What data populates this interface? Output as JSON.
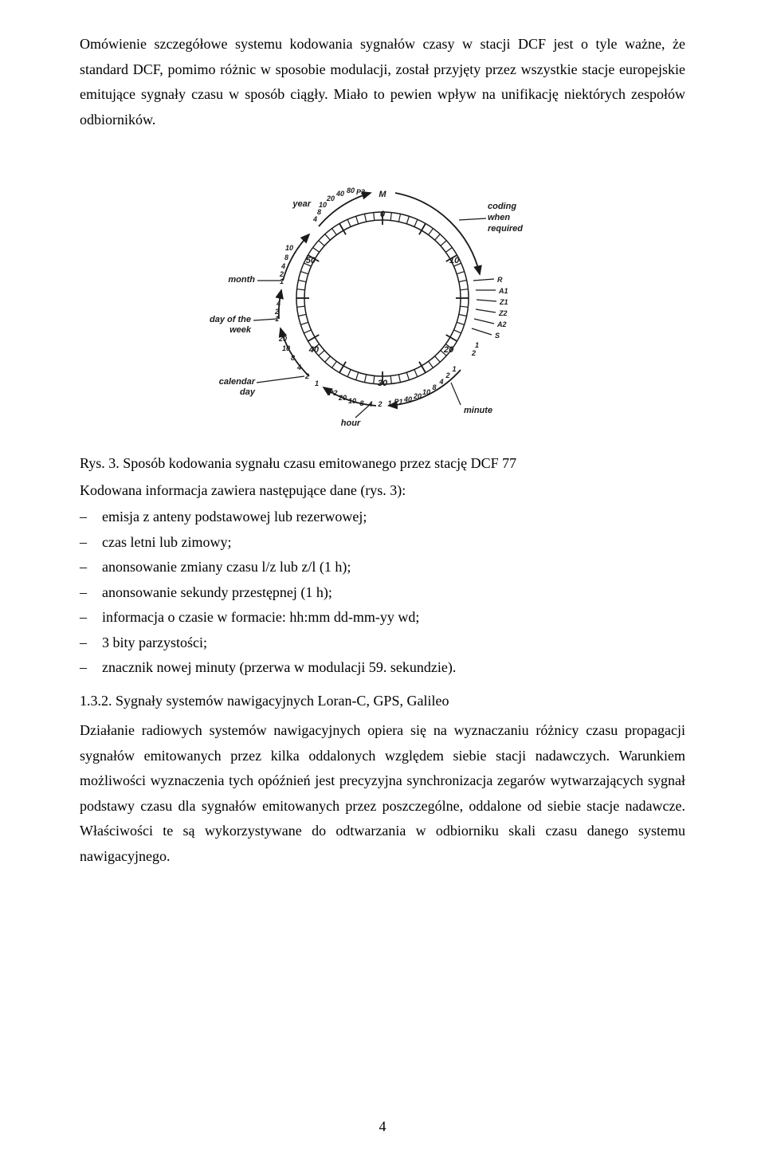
{
  "paragraph1": "Omówienie szczegółowe systemu kodowania sygnałów czasy w stacji DCF jest o tyle ważne, że standard DCF, pomimo różnic w sposobie modulacji, został przyjęty przez wszystkie stacje europejskie emitujące sygnały czasu w sposób ciągły. Miało to pewien wpływ na unifikację niektórych zespołów odbiorników.",
  "caption": "Rys. 3. Sposób kodowania sygnału czasu emitowanego przez stację DCF 77",
  "listIntro": "Kodowana informacja zawiera następujące dane (rys. 3):",
  "listItems": [
    "emisja z anteny podstawowej lub rezerwowej;",
    "czas letni lub zimowy;",
    "anonsowanie zmiany czasu l/z lub z/l (1 h);",
    "anonsowanie sekundy przestępnej (1 h);",
    "informacja o czasie w formacie: hh:mm dd-mm-yy wd;",
    "3 bity parzystości;",
    "znacznik nowej minuty (przerwa w modulacji 59. sekundzie)."
  ],
  "subheading": "1.3.2. Sygnały systemów nawigacyjnych Loran-C, GPS, Galileo",
  "paragraph2": "Działanie radiowych systemów nawigacyjnych opiera się na wyznaczaniu różnicy czasu propagacji sygnałów emitowanych przez kilka oddalonych względem siebie stacji nadawczych. Warunkiem możliwości wyznaczenia tych opóźnień jest precyzyjna synchronizacja zegarów wytwarzających sygnał podstawy czasu dla sygnałów emitowanych przez poszczególne, oddalone od siebie stacje nadawcze. Właściwości te są wykorzystywane do odtwarzania w odbiorniku skali czasu danego systemu nawigacyjnego.",
  "pageNumber": "4",
  "diagram": {
    "year": "year",
    "month": "month",
    "dayOfWeek": "day of the week",
    "calendarDay": "calendar day",
    "hour": "hour",
    "minute": "minute",
    "codingWhen": "coding when required",
    "M": "M",
    "P3": "P3",
    "P2": "P2",
    "P1": "P1",
    "R": "R",
    "A1": "A1",
    "Z1": "Z1",
    "Z2": "Z2",
    "A2": "A2",
    "S": "S",
    "nums": {
      "n0": "0",
      "n10": "10",
      "n20": "20",
      "n30": "30",
      "n40": "40",
      "n50": "50",
      "n1": "1",
      "n2": "2",
      "n4": "4",
      "n8": "8",
      "n80": "80"
    }
  }
}
